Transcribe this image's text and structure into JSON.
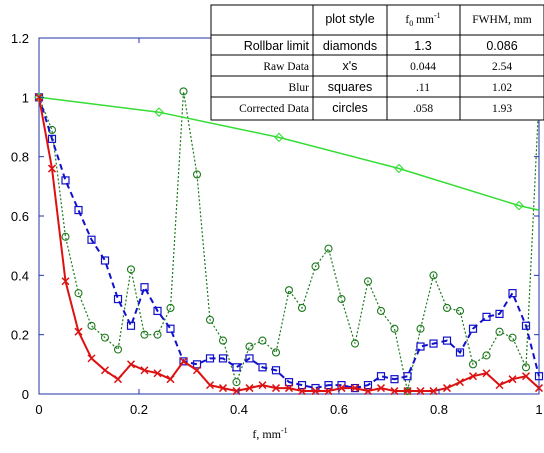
{
  "chart_data": {
    "type": "line",
    "xlabel": "f, mm",
    "xlabel_sup": "-1",
    "xlim": [
      0,
      1
    ],
    "ylim": [
      0,
      1.2
    ],
    "xticks": [
      0,
      0.2,
      0.4,
      0.6,
      0.8,
      1
    ],
    "xtick_labels": [
      "0",
      "0.2",
      "0.4",
      "0.6",
      "0.8",
      "1"
    ],
    "yticks": [
      0,
      0.2,
      0.4,
      0.6,
      0.8,
      1,
      1.2
    ],
    "ytick_labels": [
      "0",
      "0.2",
      "0.4",
      "0.6",
      "0.8",
      "1",
      "1.2"
    ],
    "grid": false,
    "series": [
      {
        "name": "Rollbar limit",
        "style": "diamonds",
        "color": "#33dd33",
        "line": "solid",
        "marker": "diamond",
        "x": [
          0,
          0.24,
          0.48,
          0.72,
          0.96,
          1.0
        ],
        "y": [
          1.0,
          0.95,
          0.865,
          0.76,
          0.635,
          0.62
        ],
        "markers_at": [
          0,
          0.24,
          0.48,
          0.72,
          0.96
        ]
      },
      {
        "name": "Raw Data",
        "style": "x's",
        "color": "#dd1111",
        "line": "solid",
        "marker": "x",
        "x": [
          0,
          0.026,
          0.053,
          0.079,
          0.105,
          0.132,
          0.158,
          0.184,
          0.211,
          0.237,
          0.263,
          0.289,
          0.316,
          0.342,
          0.368,
          0.395,
          0.421,
          0.447,
          0.474,
          0.5,
          0.526,
          0.553,
          0.579,
          0.605,
          0.632,
          0.658,
          0.684,
          0.711,
          0.737,
          0.763,
          0.789,
          0.816,
          0.842,
          0.868,
          0.895,
          0.921,
          0.947,
          0.974,
          1.0
        ],
        "y": [
          1.0,
          0.76,
          0.38,
          0.21,
          0.12,
          0.08,
          0.05,
          0.1,
          0.08,
          0.07,
          0.05,
          0.11,
          0.08,
          0.03,
          0.02,
          0.01,
          0.02,
          0.03,
          0.02,
          0.02,
          0.01,
          0.01,
          0.01,
          0.02,
          0.02,
          0.01,
          0.02,
          0.01,
          0.01,
          0.01,
          0.01,
          0.02,
          0.04,
          0.06,
          0.07,
          0.03,
          0.05,
          0.06,
          0.02
        ]
      },
      {
        "name": "Blur",
        "style": "squares",
        "color": "#1111cc",
        "line": "dashed",
        "marker": "square",
        "x": [
          0,
          0.026,
          0.053,
          0.079,
          0.105,
          0.132,
          0.158,
          0.184,
          0.211,
          0.237,
          0.263,
          0.289,
          0.316,
          0.342,
          0.368,
          0.395,
          0.421,
          0.447,
          0.474,
          0.5,
          0.526,
          0.553,
          0.579,
          0.605,
          0.632,
          0.658,
          0.684,
          0.711,
          0.737,
          0.763,
          0.789,
          0.816,
          0.842,
          0.868,
          0.895,
          0.921,
          0.947,
          0.974,
          1.0
        ],
        "y": [
          1.0,
          0.86,
          0.72,
          0.62,
          0.52,
          0.45,
          0.32,
          0.23,
          0.36,
          0.28,
          0.22,
          0.11,
          0.1,
          0.12,
          0.12,
          0.09,
          0.12,
          0.09,
          0.08,
          0.04,
          0.03,
          0.02,
          0.03,
          0.03,
          0.02,
          0.03,
          0.06,
          0.05,
          0.06,
          0.16,
          0.17,
          0.18,
          0.14,
          0.22,
          0.26,
          0.27,
          0.34,
          0.23,
          0.06
        ]
      },
      {
        "name": "Corrected Data",
        "style": "circles",
        "color": "#1d7a1d",
        "line": "dotted",
        "marker": "circle",
        "x": [
          0,
          0.026,
          0.053,
          0.079,
          0.105,
          0.132,
          0.158,
          0.184,
          0.211,
          0.237,
          0.263,
          0.289,
          0.316,
          0.342,
          0.368,
          0.395,
          0.421,
          0.447,
          0.474,
          0.5,
          0.526,
          0.553,
          0.579,
          0.605,
          0.632,
          0.658,
          0.684,
          0.711,
          0.737,
          0.763,
          0.789,
          0.816,
          0.842,
          0.868,
          0.895,
          0.921,
          0.947,
          0.974,
          1.0
        ],
        "y": [
          1.0,
          0.89,
          0.53,
          0.34,
          0.23,
          0.19,
          0.15,
          0.42,
          0.2,
          0.2,
          0.29,
          1.02,
          0.74,
          0.25,
          0.18,
          0.04,
          0.16,
          0.18,
          0.14,
          0.35,
          0.29,
          0.43,
          0.49,
          0.32,
          0.17,
          0.38,
          0.28,
          0.22,
          0.01,
          0.22,
          0.4,
          0.29,
          0.28,
          0.1,
          0.13,
          0.21,
          0.19,
          0.09,
          1.0
        ]
      }
    ],
    "table": {
      "headers": [
        "",
        "plot style",
        "f",
        "FWHM, mm"
      ],
      "f_header_sub": "0",
      "f_header_unit": " mm",
      "f_header_sup": "-1",
      "rows": [
        [
          "Rollbar limit",
          "diamonds",
          "1.3",
          "0.086"
        ],
        [
          "Raw Data",
          "x's",
          "0.044",
          "2.54"
        ],
        [
          "Blur",
          "squares",
          ".11",
          "1.02"
        ],
        [
          "Corrected Data",
          "circles",
          ".058",
          "1.93"
        ]
      ]
    }
  }
}
